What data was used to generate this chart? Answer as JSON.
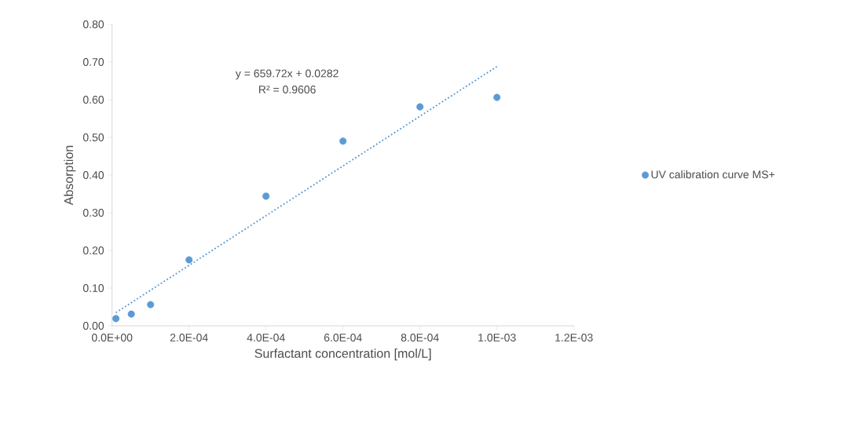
{
  "chart_data": {
    "type": "scatter",
    "xlabel": "Surfactant concentration [mol/L]",
    "ylabel": "Absorption",
    "xlim": [
      0,
      0.0012
    ],
    "ylim": [
      0,
      0.8
    ],
    "xticks": [
      {
        "value": 0,
        "label": "0.0E+00"
      },
      {
        "value": 0.0002,
        "label": "2.0E-04"
      },
      {
        "value": 0.0004,
        "label": "4.0E-04"
      },
      {
        "value": 0.0006,
        "label": "6.0E-04"
      },
      {
        "value": 0.0008,
        "label": "8.0E-04"
      },
      {
        "value": 0.001,
        "label": "1.0E-03"
      },
      {
        "value": 0.0012,
        "label": "1.2E-03"
      }
    ],
    "yticks": [
      {
        "value": 0,
        "label": "0.00"
      },
      {
        "value": 0.1,
        "label": "0.10"
      },
      {
        "value": 0.2,
        "label": "0.20"
      },
      {
        "value": 0.3,
        "label": "0.30"
      },
      {
        "value": 0.4,
        "label": "0.40"
      },
      {
        "value": 0.5,
        "label": "0.50"
      },
      {
        "value": 0.6,
        "label": "0.60"
      },
      {
        "value": 0.7,
        "label": "0.70"
      },
      {
        "value": 0.8,
        "label": "0.80"
      }
    ],
    "series": [
      {
        "name": "UV calibration curve MS+",
        "color": "#5b9bd5",
        "marker": "circle",
        "x": [
          1e-05,
          5e-05,
          0.0001,
          0.0002,
          0.0004,
          0.0006,
          0.0008,
          0.001
        ],
        "values": [
          0.019,
          0.031,
          0.056,
          0.175,
          0.344,
          0.49,
          0.581,
          0.606
        ]
      },
      {
        "type": "line",
        "color": "#5b9bd5",
        "line_style": "dotted",
        "marker": "none",
        "x": [
          1e-05,
          0.001
        ],
        "values": [
          0.035,
          0.688
        ]
      }
    ],
    "annotations": [
      "y = 659.72x + 0.0282",
      "R² = 0.9606"
    ],
    "legend": "right",
    "grid": false
  }
}
